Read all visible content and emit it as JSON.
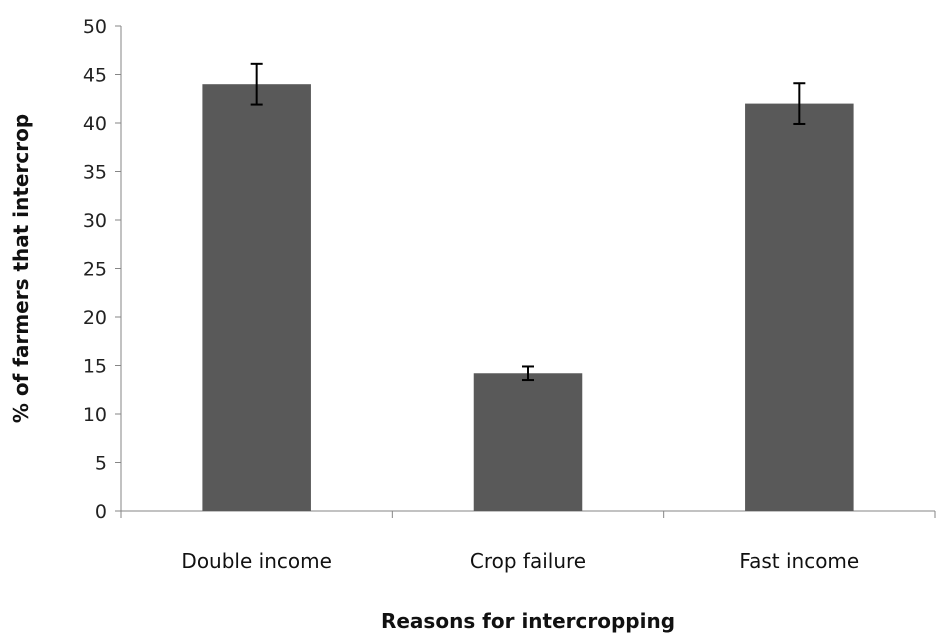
{
  "chart_data": {
    "type": "bar",
    "title": "",
    "xlabel": "Reasons for intercropping",
    "ylabel": "% of farmers that intercrop",
    "categories": [
      "Double income",
      "Crop failure",
      "Fast income"
    ],
    "values": [
      44,
      14.2,
      42
    ],
    "error": [
      2.1,
      0.7,
      2.1
    ],
    "ylim": [
      0,
      50
    ],
    "yticks": [
      0,
      5,
      10,
      15,
      20,
      25,
      30,
      35,
      40,
      45,
      50
    ],
    "bar_color": "#595959",
    "grid": false,
    "legend": "none"
  }
}
